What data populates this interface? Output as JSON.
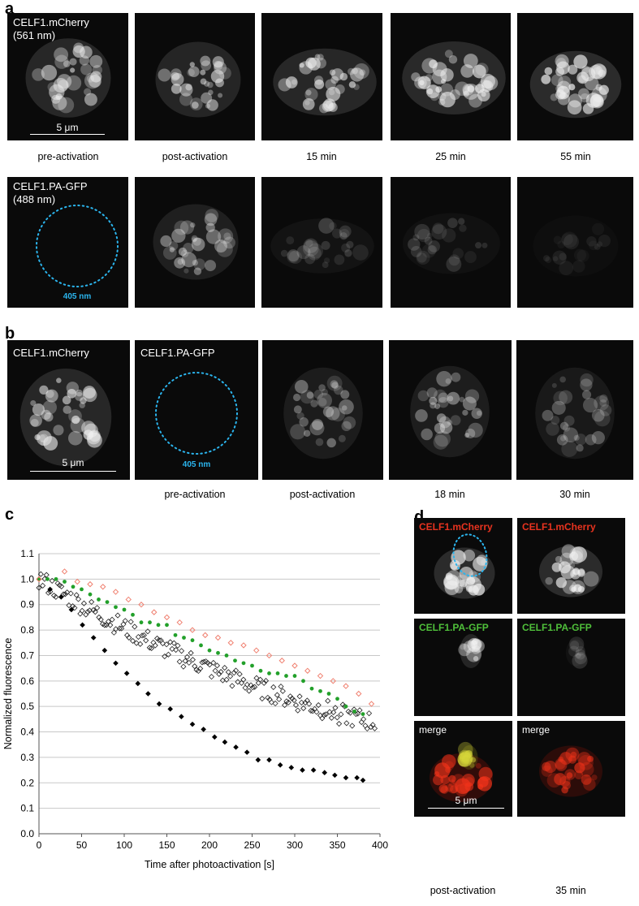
{
  "panels": {
    "a": "a",
    "b": "b",
    "c": "c",
    "d": "d"
  },
  "a": {
    "mcherry_label": "CELF1.mCherry\n(561 nm)",
    "pagfp_label": "CELF1.PA-GFP\n(488 nm)",
    "roi_label": "405 nm",
    "scale": "5 μm",
    "captions": [
      "pre-activation",
      "post-activation",
      "15 min",
      "25 min",
      "55 min"
    ]
  },
  "b": {
    "mcherry_label": "CELF1.mCherry",
    "pagfp_label": "CELF1.PA-GFP",
    "roi_label": "405 nm",
    "scale": "5 μm",
    "captions": [
      "pre-activation",
      "post-activation",
      "18 min",
      "30 min"
    ]
  },
  "d": {
    "mcherry_label": "CELF1.mCherry",
    "pagfp_label": "CELF1.PA-GFP",
    "merge_label": "merge",
    "scale": "5 μm",
    "captions": [
      "post-activation",
      "35 min"
    ],
    "colors": {
      "mcherry": "#e8331f",
      "pagfp": "#4fbf3a",
      "roi": "#2bb5ee"
    }
  },
  "chart_data": {
    "type": "scatter",
    "xlabel": "Time after photoactivation [s]",
    "ylabel": "Normalized fluorescence",
    "xlim": [
      0,
      400
    ],
    "ylim": [
      0,
      1.1
    ],
    "xticks": [
      0,
      50,
      100,
      150,
      200,
      250,
      300,
      350,
      400
    ],
    "yticks": [
      0.0,
      0.1,
      0.2,
      0.3,
      0.4,
      0.5,
      0.6,
      0.7,
      0.8,
      0.9,
      1.0,
      1.1
    ],
    "grid": "horizontal",
    "series": [
      {
        "marker": "diamond-filled",
        "color": "#000000",
        "x": [
          0,
          13,
          26,
          38,
          51,
          64,
          77,
          90,
          103,
          116,
          128,
          141,
          154,
          167,
          180,
          193,
          206,
          218,
          231,
          244,
          257,
          270,
          283,
          296,
          309,
          322,
          335,
          347,
          360,
          373,
          380
        ],
        "y": [
          1.0,
          0.96,
          0.93,
          0.88,
          0.82,
          0.77,
          0.72,
          0.67,
          0.63,
          0.59,
          0.55,
          0.51,
          0.49,
          0.46,
          0.43,
          0.41,
          0.38,
          0.36,
          0.34,
          0.32,
          0.29,
          0.29,
          0.27,
          0.26,
          0.25,
          0.25,
          0.24,
          0.23,
          0.22,
          0.22,
          0.21
        ]
      },
      {
        "marker": "dot",
        "color": "#22a02a",
        "x": [
          0,
          10,
          20,
          30,
          40,
          50,
          60,
          70,
          80,
          90,
          100,
          110,
          120,
          130,
          140,
          150,
          160,
          170,
          180,
          190,
          200,
          210,
          220,
          230,
          240,
          250,
          260,
          270,
          280,
          290,
          300,
          310,
          320,
          330,
          340,
          350,
          360,
          370,
          380
        ],
        "y": [
          1.0,
          1.0,
          1.0,
          0.99,
          0.97,
          0.96,
          0.94,
          0.92,
          0.91,
          0.89,
          0.88,
          0.86,
          0.83,
          0.83,
          0.82,
          0.82,
          0.78,
          0.77,
          0.76,
          0.74,
          0.72,
          0.71,
          0.7,
          0.68,
          0.67,
          0.66,
          0.64,
          0.63,
          0.63,
          0.62,
          0.62,
          0.6,
          0.57,
          0.56,
          0.55,
          0.53,
          0.5,
          0.48,
          0.47
        ]
      },
      {
        "marker": "diamond-open",
        "color": "#f08070",
        "x": [
          0,
          30,
          45,
          60,
          75,
          90,
          105,
          120,
          135,
          150,
          165,
          180,
          195,
          210,
          225,
          240,
          255,
          270,
          285,
          300,
          315,
          330,
          345,
          360,
          375,
          390
        ],
        "y": [
          1.0,
          1.03,
          0.99,
          0.98,
          0.97,
          0.95,
          0.92,
          0.9,
          0.87,
          0.85,
          0.83,
          0.8,
          0.78,
          0.77,
          0.75,
          0.74,
          0.72,
          0.7,
          0.68,
          0.66,
          0.64,
          0.62,
          0.6,
          0.58,
          0.55,
          0.51
        ]
      }
    ],
    "extra_series_note": ""
  }
}
